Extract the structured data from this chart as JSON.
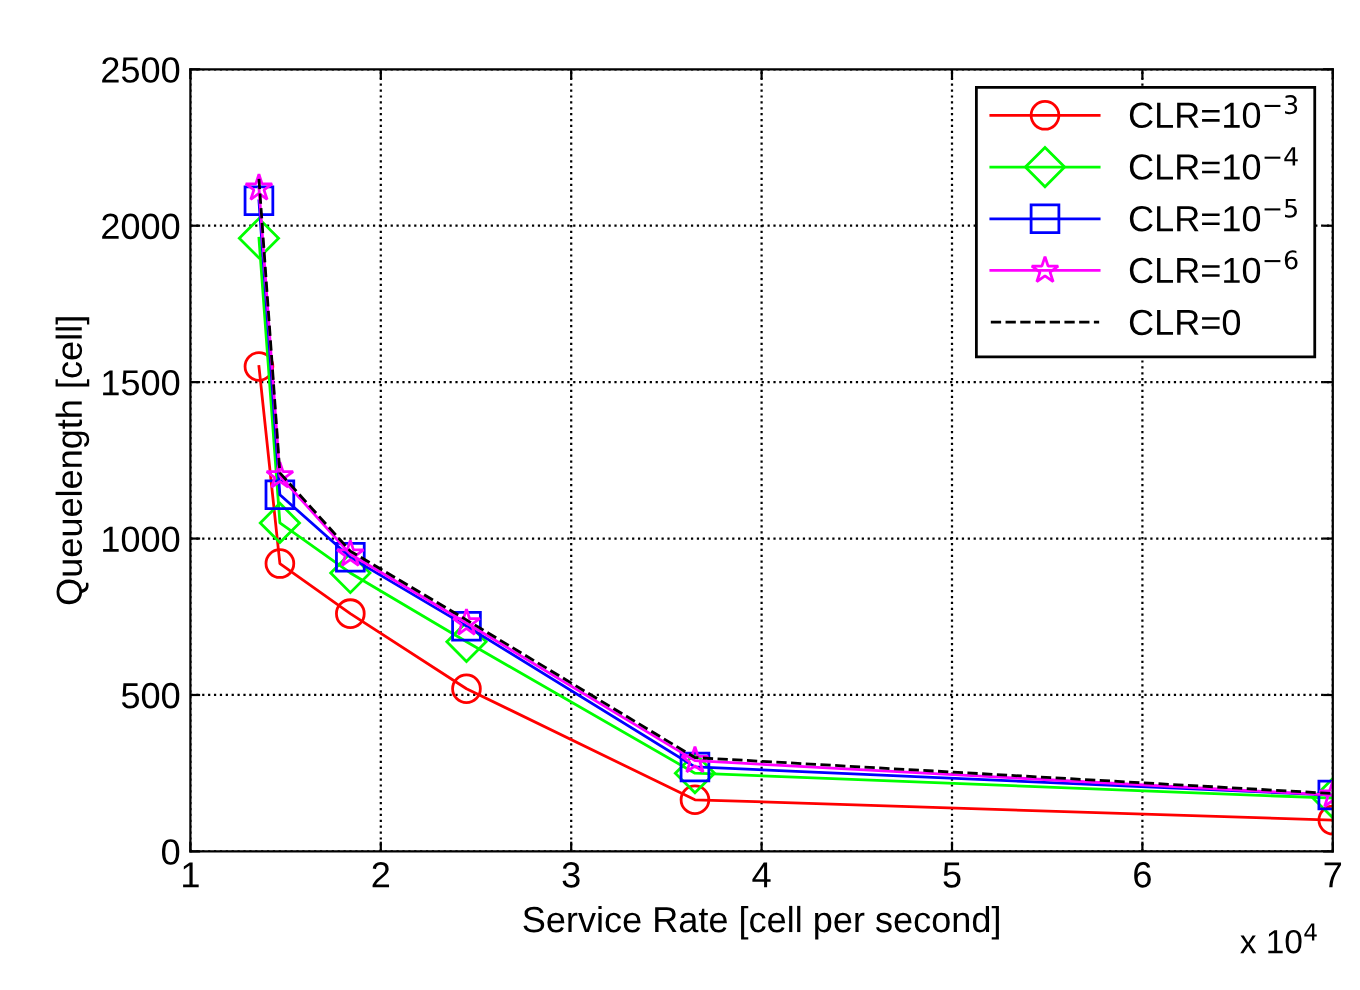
{
  "chart_data": {
    "type": "line",
    "xlabel": "Service Rate [cell per second]",
    "ylabel": "Queuelength [cell]",
    "x": [
      1.36,
      1.47,
      1.84,
      2.45,
      3.65,
      7
    ],
    "series": [
      {
        "name": "CLR=10$^{−3}$",
        "color": "#ff0000",
        "marker": "circle",
        "line_style": "solid",
        "values": [
          1550,
          920,
          760,
          520,
          165,
          100
        ]
      },
      {
        "name": "CLR=10$^{−4}$",
        "color": "#00ff00",
        "marker": "diamond",
        "line_style": "solid",
        "values": [
          1960,
          1050,
          890,
          670,
          250,
          170
        ]
      },
      {
        "name": "CLR=10$^{−5}$",
        "color": "#0000ff",
        "marker": "square",
        "line_style": "solid",
        "values": [
          2080,
          1140,
          940,
          720,
          270,
          180
        ]
      },
      {
        "name": "CLR=10$^{−6}$",
        "color": "#ff00ff",
        "marker": "star",
        "line_style": "solid",
        "values": [
          2120,
          1200,
          950,
          730,
          290,
          180
        ]
      },
      {
        "name": "CLR=0",
        "color": "#000000",
        "marker": "none",
        "line_style": "dashed",
        "values": [
          2150,
          1210,
          960,
          740,
          300,
          185
        ]
      }
    ],
    "xlim": [
      1,
      7
    ],
    "xticks": [
      1,
      2,
      3,
      4,
      5,
      6,
      7
    ],
    "ylim": [
      0,
      2500
    ],
    "yticks": [
      0,
      500,
      1000,
      1500,
      2000,
      2500
    ],
    "annotations": [
      "x 10$^{4}$"
    ],
    "grid": true,
    "legend": "top right"
  }
}
